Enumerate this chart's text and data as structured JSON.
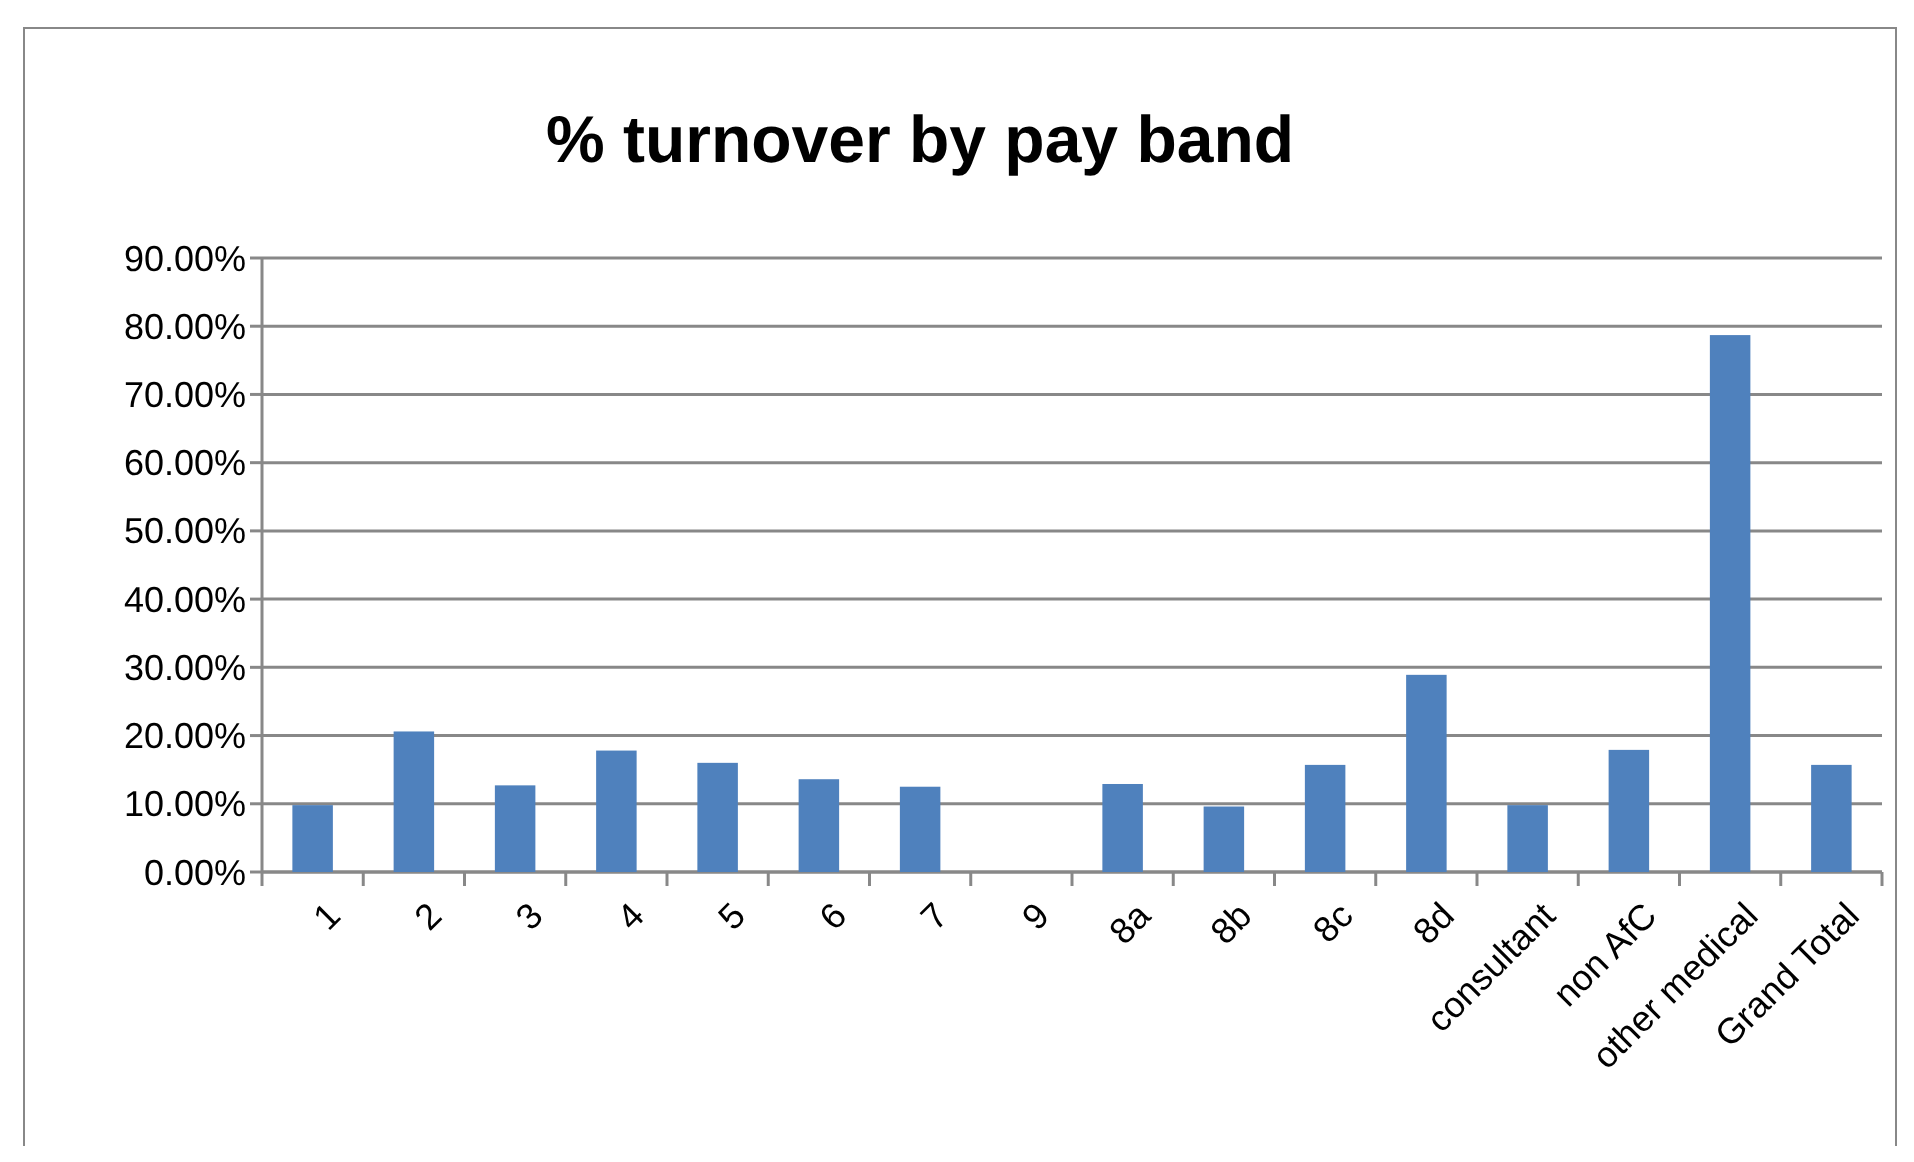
{
  "chart_data": {
    "type": "bar",
    "title": "% turnover by pay band",
    "categories": [
      "1",
      "2",
      "3",
      "4",
      "5",
      "6",
      "7",
      "9",
      "8a",
      "8b",
      "8c",
      "8d",
      "consultant",
      "non AfC",
      "other medical",
      "Grand Total"
    ],
    "values": [
      9.8,
      20.6,
      12.7,
      17.8,
      16.0,
      13.6,
      12.5,
      0,
      12.9,
      9.6,
      15.7,
      28.9,
      9.8,
      17.9,
      78.7,
      15.7
    ],
    "color": "#4f81bd",
    "ylim": [
      0,
      90
    ],
    "yticks": [
      {
        "value": 0,
        "label": "0.00%"
      },
      {
        "value": 10,
        "label": "10.00%"
      },
      {
        "value": 20,
        "label": "20.00%"
      },
      {
        "value": 30,
        "label": "30.00%"
      },
      {
        "value": 40,
        "label": "40.00%"
      },
      {
        "value": 50,
        "label": "50.00%"
      },
      {
        "value": 60,
        "label": "60.00%"
      },
      {
        "value": 70,
        "label": "70.00%"
      },
      {
        "value": 80,
        "label": "80.00%"
      },
      {
        "value": 90,
        "label": "90.00%"
      }
    ],
    "grid": "y"
  }
}
